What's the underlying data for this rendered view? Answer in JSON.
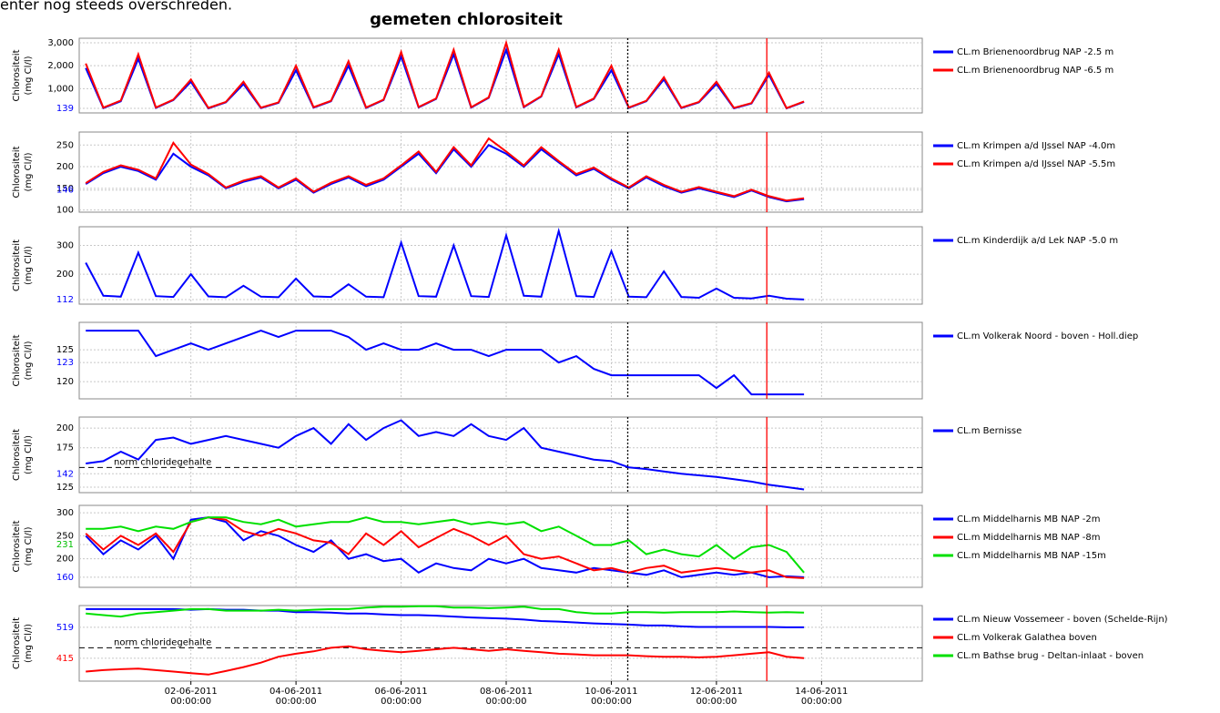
{
  "header_text": "enter nog steeds overschreden.",
  "title": "gemeten chlorositeit",
  "x": [
    "2011-05-31T00:00",
    "2011-05-31T08:00",
    "2011-05-31T16:00",
    "2011-06-01T00:00",
    "2011-06-01T08:00",
    "2011-06-01T16:00",
    "2011-06-02T00:00",
    "2011-06-02T08:00",
    "2011-06-02T16:00",
    "2011-06-03T00:00",
    "2011-06-03T08:00",
    "2011-06-03T16:00",
    "2011-06-04T00:00",
    "2011-06-04T08:00",
    "2011-06-04T16:00",
    "2011-06-05T00:00",
    "2011-06-05T08:00",
    "2011-06-05T16:00",
    "2011-06-06T00:00",
    "2011-06-06T08:00",
    "2011-06-06T16:00",
    "2011-06-07T00:00",
    "2011-06-07T08:00",
    "2011-06-07T16:00",
    "2011-06-08T00:00",
    "2011-06-08T08:00",
    "2011-06-08T16:00",
    "2011-06-09T00:00",
    "2011-06-09T08:00",
    "2011-06-09T16:00",
    "2011-06-10T00:00",
    "2011-06-10T08:00",
    "2011-06-10T16:00",
    "2011-06-11T00:00",
    "2011-06-11T08:00",
    "2011-06-11T16:00",
    "2011-06-12T00:00",
    "2011-06-12T08:00",
    "2011-06-12T16:00",
    "2011-06-13T00:00",
    "2011-06-13T08:00",
    "2011-06-13T16:00"
  ],
  "xlim": [
    "2011-05-30T21:00",
    "2011-06-15T22:00"
  ],
  "xticks": [
    {
      "value": "2011-06-02T00:00",
      "label": "02-06-2011 00:00:00"
    },
    {
      "value": "2011-06-04T00:00",
      "label": "04-06-2011 00:00:00"
    },
    {
      "value": "2011-06-06T00:00",
      "label": "06-06-2011 00:00:00"
    },
    {
      "value": "2011-06-08T00:00",
      "label": "08-06-2011 00:00:00"
    },
    {
      "value": "2011-06-10T00:00",
      "label": "10-06-2011 00:00:00"
    },
    {
      "value": "2011-06-12T00:00",
      "label": "12-06-2011 00:00:00"
    },
    {
      "value": "2011-06-14T00:00",
      "label": "14-06-2011 00:00:00"
    }
  ],
  "vlines": [
    {
      "x": "2011-06-10T07:30",
      "color": "#000000",
      "style": "dotted"
    },
    {
      "x": "2011-06-12T23:00",
      "color": "#ff0000",
      "style": "solid"
    }
  ],
  "chart_data": [
    {
      "type": "line",
      "ylabel": [
        "Chlorositeit",
        "(mg Cl/l)"
      ],
      "ylim": [
        -60,
        3200
      ],
      "yticks": [
        {
          "value": 1000,
          "label": "1,000"
        },
        {
          "value": 2000,
          "label": "2,000"
        },
        {
          "value": 3000,
          "label": "3,000"
        }
      ],
      "marker_ticks": [
        139
      ],
      "marker_tick_colors": [
        "#0000ff"
      ],
      "series": [
        {
          "name": "CL.m Brienenoordbrug NAP -2.5 m",
          "color": "#0000ff",
          "values": [
            1900,
            150,
            450,
            2300,
            160,
            500,
            1300,
            140,
            400,
            1200,
            150,
            380,
            1800,
            170,
            450,
            2000,
            160,
            500,
            2400,
            180,
            550,
            2500,
            170,
            600,
            2700,
            190,
            650,
            2500,
            180,
            550,
            1800,
            160,
            450,
            1400,
            150,
            400,
            1200,
            140,
            350,
            1600,
            139,
            420
          ]
        },
        {
          "name": "CL.m Brienenoordbrug NAP -6.5 m",
          "color": "#ff0000",
          "values": [
            2100,
            170,
            480,
            2500,
            180,
            520,
            1400,
            160,
            420,
            1300,
            170,
            400,
            2000,
            190,
            470,
            2200,
            180,
            520,
            2600,
            200,
            570,
            2700,
            190,
            620,
            3000,
            210,
            670,
            2700,
            200,
            570,
            2000,
            180,
            470,
            1500,
            170,
            420,
            1300,
            160,
            370,
            1700,
            150,
            440
          ]
        }
      ]
    },
    {
      "type": "line",
      "ylabel": [
        "Chlorositeit",
        "(mg Cl/l)"
      ],
      "ylim": [
        95,
        280
      ],
      "yticks": [
        100,
        150,
        200,
        250
      ],
      "marker_ticks": [
        146
      ],
      "marker_tick_colors": [
        "#0000ff"
      ],
      "series": [
        {
          "name": "CL.m Krimpen a/d IJssel NAP -4.0m",
          "color": "#0000ff",
          "values": [
            160,
            185,
            200,
            190,
            170,
            230,
            200,
            180,
            150,
            165,
            175,
            150,
            170,
            140,
            160,
            175,
            155,
            170,
            200,
            230,
            185,
            240,
            200,
            250,
            230,
            200,
            240,
            210,
            180,
            195,
            170,
            150,
            175,
            155,
            140,
            150,
            140,
            130,
            145,
            130,
            120,
            125
          ]
        },
        {
          "name": "CL.m Krimpen a/d IJssel NAP -5.5m",
          "color": "#ff0000",
          "values": [
            162,
            188,
            203,
            193,
            173,
            255,
            205,
            183,
            152,
            168,
            178,
            152,
            173,
            142,
            163,
            178,
            158,
            173,
            203,
            235,
            188,
            245,
            203,
            265,
            235,
            203,
            245,
            213,
            183,
            198,
            173,
            152,
            178,
            158,
            142,
            153,
            142,
            132,
            147,
            132,
            122,
            127
          ]
        }
      ]
    },
    {
      "type": "line",
      "ylabel": [
        "Chlorositeit",
        "(mg Cl/l)"
      ],
      "ylim": [
        96,
        365
      ],
      "yticks": [
        200,
        300
      ],
      "marker_ticks": [
        112
      ],
      "marker_tick_colors": [
        "#0000ff"
      ],
      "series": [
        {
          "name": "CL.m Kinderdijk a/d Lek NAP -5.0 m",
          "color": "#0000ff",
          "values": [
            240,
            125,
            122,
            275,
            124,
            121,
            200,
            123,
            120,
            160,
            122,
            120,
            185,
            123,
            121,
            165,
            122,
            120,
            310,
            124,
            122,
            300,
            124,
            121,
            335,
            125,
            122,
            350,
            124,
            121,
            280,
            122,
            120,
            210,
            121,
            118,
            150,
            118,
            116,
            125,
            115,
            112
          ]
        }
      ]
    },
    {
      "type": "line",
      "ylabel": [
        "Chlorositeit",
        "(mg Cl/l)"
      ],
      "ylim": [
        117.3,
        129.3
      ],
      "yticks": [
        120,
        125
      ],
      "marker_ticks": [
        123
      ],
      "marker_tick_colors": [
        "#0000ff"
      ],
      "series": [
        {
          "name": "CL.m Volkerak Noord - boven - Holl.diep",
          "color": "#0000ff",
          "values": [
            128,
            128,
            128,
            128,
            124,
            125,
            126,
            125,
            126,
            127,
            128,
            127,
            128,
            128,
            128,
            127,
            125,
            126,
            125,
            125,
            126,
            125,
            125,
            124,
            125,
            125,
            125,
            123,
            124,
            122,
            121,
            121,
            121,
            121,
            121,
            121,
            119,
            121,
            118,
            118,
            118,
            118
          ]
        }
      ]
    },
    {
      "type": "line",
      "ylabel": [
        "Chlorositeit",
        "(mg Cl/l)"
      ],
      "ylim": [
        118,
        214
      ],
      "yticks": [
        125,
        175,
        200
      ],
      "marker_ticks": [
        142
      ],
      "marker_tick_colors": [
        "#0000ff"
      ],
      "reference_line": {
        "value": 150,
        "label": "norm chloridegehalte"
      },
      "series": [
        {
          "name": "CL.m Bernisse",
          "color": "#0000ff",
          "values": [
            155,
            158,
            170,
            160,
            185,
            188,
            180,
            185,
            190,
            185,
            180,
            175,
            190,
            200,
            180,
            205,
            185,
            200,
            210,
            190,
            195,
            190,
            205,
            190,
            185,
            200,
            175,
            170,
            165,
            160,
            158,
            150,
            148,
            145,
            142,
            140,
            138,
            135,
            132,
            128,
            125,
            122
          ]
        }
      ]
    },
    {
      "type": "line",
      "ylabel": [
        "Chlorositeit",
        "(mg Cl/l)"
      ],
      "ylim": [
        138,
        316
      ],
      "yticks": [
        200,
        250,
        300
      ],
      "marker_ticks": [
        231,
        160
      ],
      "marker_tick_colors": [
        "#00c000",
        "#0000ff"
      ],
      "series": [
        {
          "name": "CL.m Middelharnis MB NAP -2m",
          "color": "#0000ff",
          "values": [
            250,
            210,
            240,
            220,
            250,
            200,
            285,
            290,
            280,
            240,
            260,
            250,
            230,
            215,
            240,
            200,
            210,
            195,
            200,
            170,
            190,
            180,
            175,
            200,
            190,
            200,
            180,
            175,
            170,
            180,
            175,
            170,
            165,
            175,
            160,
            165,
            170,
            165,
            170,
            160,
            162,
            160
          ]
        },
        {
          "name": "CL.m Middelharnis MB NAP -8m",
          "color": "#ff0000",
          "values": [
            255,
            220,
            250,
            230,
            255,
            215,
            280,
            290,
            285,
            260,
            250,
            265,
            255,
            240,
            235,
            210,
            255,
            230,
            260,
            225,
            245,
            265,
            250,
            230,
            250,
            210,
            200,
            205,
            190,
            175,
            180,
            170,
            180,
            185,
            170,
            175,
            180,
            175,
            170,
            175,
            160,
            158
          ]
        },
        {
          "name": "CL.m Middelharnis MB NAP -15m",
          "color": "#00e000",
          "values": [
            265,
            265,
            270,
            260,
            270,
            265,
            280,
            290,
            290,
            280,
            275,
            285,
            270,
            275,
            280,
            280,
            290,
            280,
            280,
            275,
            280,
            285,
            275,
            280,
            275,
            280,
            260,
            270,
            250,
            230,
            230,
            240,
            210,
            220,
            210,
            205,
            230,
            200,
            225,
            230,
            215,
            170
          ]
        }
      ]
    },
    {
      "type": "line",
      "ylabel": [
        "Chlorositeit",
        "(mg Cl/l)"
      ],
      "ylim": [
        338,
        592
      ],
      "yticks": [],
      "marker_ticks": [
        519,
        415
      ],
      "marker_tick_colors": [
        "#0000ff",
        "#ff0000"
      ],
      "reference_line": {
        "value": 450,
        "label": "norm chloridegehalte"
      },
      "series": [
        {
          "name": "CL.m Nieuw Vossemeer - boven (Schelde-Rijn)",
          "color": "#0000ff",
          "values": [
            580,
            580,
            580,
            580,
            580,
            580,
            578,
            580,
            578,
            578,
            575,
            575,
            570,
            570,
            568,
            565,
            565,
            562,
            560,
            560,
            558,
            555,
            552,
            550,
            548,
            545,
            540,
            538,
            535,
            532,
            530,
            528,
            525,
            525,
            522,
            520,
            520,
            520,
            520,
            520,
            519,
            519
          ]
        },
        {
          "name": "CL.m Volkerak Galathea boven",
          "color": "#ff0000",
          "values": [
            370,
            375,
            378,
            380,
            375,
            370,
            365,
            360,
            372,
            385,
            400,
            420,
            430,
            438,
            450,
            455,
            445,
            440,
            435,
            440,
            445,
            450,
            445,
            440,
            445,
            440,
            435,
            430,
            428,
            425,
            425,
            425,
            422,
            420,
            420,
            418,
            420,
            425,
            430,
            435,
            420,
            415
          ]
        },
        {
          "name": "CL.m Bathse brug - Deltan-inlaat - boven",
          "color": "#00e000",
          "values": [
            565,
            560,
            555,
            565,
            570,
            575,
            580,
            580,
            575,
            575,
            575,
            578,
            575,
            578,
            580,
            580,
            585,
            588,
            588,
            590,
            590,
            585,
            585,
            583,
            585,
            588,
            580,
            580,
            570,
            565,
            565,
            570,
            570,
            568,
            570,
            570,
            570,
            572,
            570,
            568,
            570,
            568
          ]
        }
      ]
    }
  ]
}
